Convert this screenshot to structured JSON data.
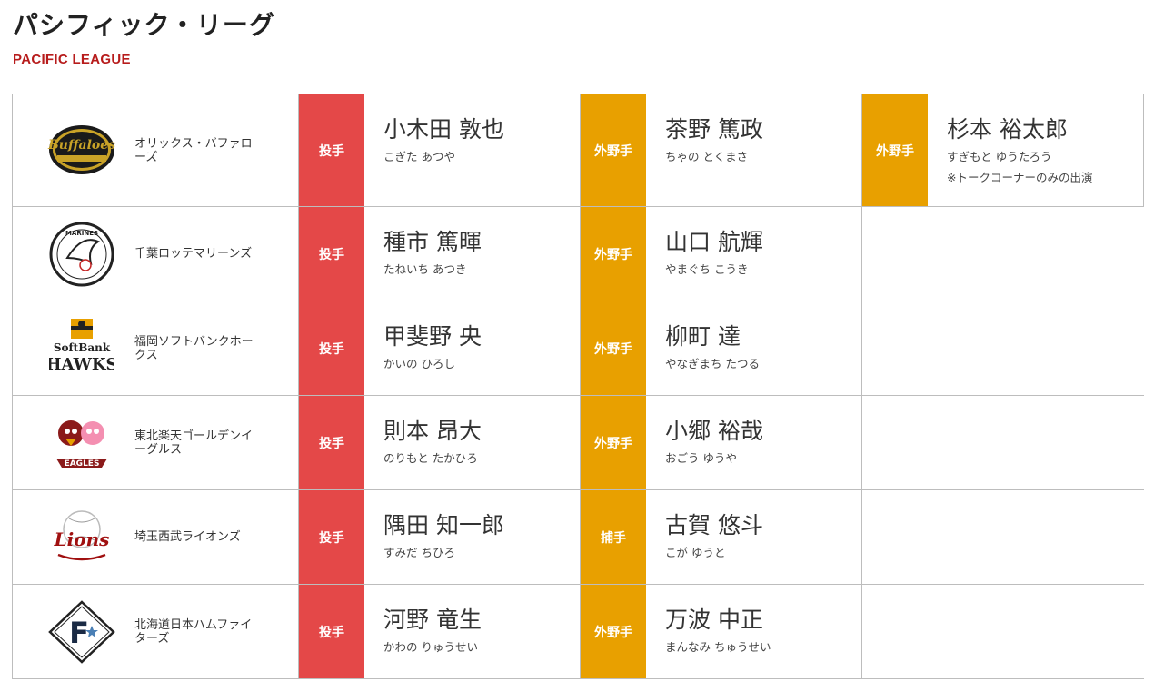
{
  "header": {
    "title": "パシフィック・リーグ",
    "subtitle": "PACIFIC LEAGUE"
  },
  "colors": {
    "pitcher": "#e44848",
    "fielder": "#e8a000",
    "subtitle": "#b71c1c"
  },
  "teams": [
    {
      "name": "オリックス・バファローズ",
      "logo_icon": "buffaloes-logo-icon",
      "logo_text": "Buffaloes",
      "players": [
        {
          "position": "投手",
          "type": "pitcher",
          "name": "小木田 敦也",
          "kana": "こぎた あつや"
        },
        {
          "position": "外野手",
          "type": "fielder",
          "name": "茶野 篤政",
          "kana": "ちゃの とくまさ"
        },
        {
          "position": "外野手",
          "type": "fielder",
          "name": "杉本 裕太郎",
          "kana": "すぎもと ゆうたろう",
          "note": "※トークコーナーのみの出演"
        }
      ]
    },
    {
      "name": "千葉ロッテマリーンズ",
      "logo_icon": "marines-logo-icon",
      "logo_text": "MARINES",
      "players": [
        {
          "position": "投手",
          "type": "pitcher",
          "name": "種市 篤暉",
          "kana": "たねいち あつき"
        },
        {
          "position": "外野手",
          "type": "fielder",
          "name": "山口 航輝",
          "kana": "やまぐち こうき"
        }
      ]
    },
    {
      "name": "福岡ソフトバンクホークス",
      "logo_icon": "hawks-logo-icon",
      "logo_text": "SoftBank",
      "logo_text2": "HAWKS",
      "players": [
        {
          "position": "投手",
          "type": "pitcher",
          "name": "甲斐野 央",
          "kana": "かいの ひろし"
        },
        {
          "position": "外野手",
          "type": "fielder",
          "name": "柳町 達",
          "kana": "やなぎまち たつる"
        }
      ]
    },
    {
      "name": "東北楽天ゴールデンイーグルス",
      "logo_icon": "eagles-logo-icon",
      "logo_text": "EAGLES",
      "players": [
        {
          "position": "投手",
          "type": "pitcher",
          "name": "則本 昂大",
          "kana": "のりもと たかひろ"
        },
        {
          "position": "外野手",
          "type": "fielder",
          "name": "小郷 裕哉",
          "kana": "おごう ゆうや"
        }
      ]
    },
    {
      "name": "埼玉西武ライオンズ",
      "logo_icon": "lions-logo-icon",
      "logo_text": "Lions",
      "players": [
        {
          "position": "投手",
          "type": "pitcher",
          "name": "隅田 知一郎",
          "kana": "すみだ ちひろ"
        },
        {
          "position": "捕手",
          "type": "fielder",
          "name": "古賀 悠斗",
          "kana": "こが ゆうと"
        }
      ]
    },
    {
      "name": "北海道日本ハムファイターズ",
      "logo_icon": "fighters-logo-icon",
      "logo_text": "F",
      "players": [
        {
          "position": "投手",
          "type": "pitcher",
          "name": "河野 竜生",
          "kana": "かわの りゅうせい"
        },
        {
          "position": "外野手",
          "type": "fielder",
          "name": "万波 中正",
          "kana": "まんなみ ちゅうせい"
        }
      ]
    }
  ]
}
